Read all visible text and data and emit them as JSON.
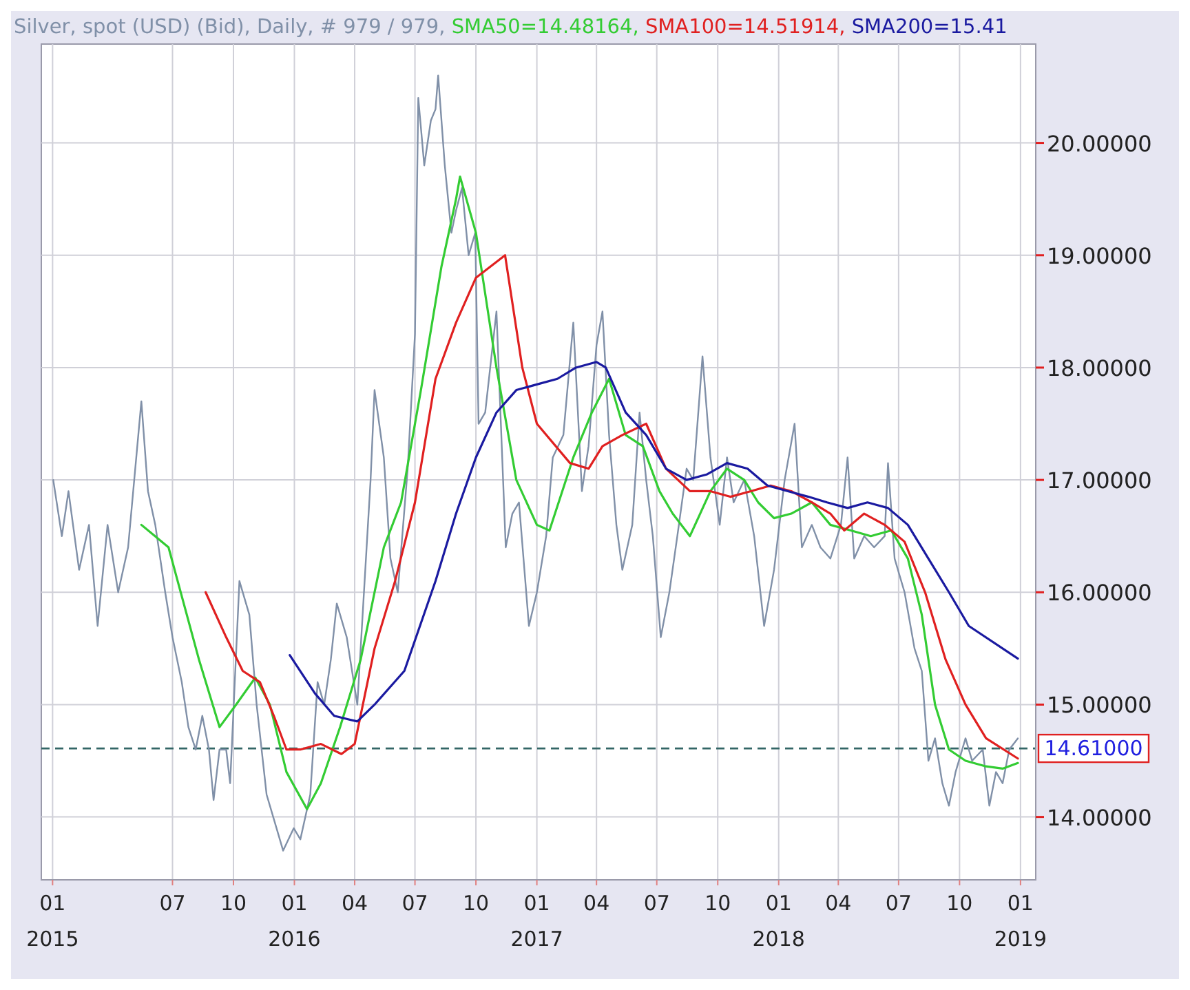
{
  "chart_data": {
    "type": "line",
    "title": "Silver, spot (USD) (Bid), Daily, # 979 / 979, ",
    "legend": "top",
    "grid": true,
    "marker": "none",
    "line_style": "solid",
    "xlim": [
      "2014-12-15",
      "2019-01-24"
    ],
    "xticks": [
      {
        "value": "2015-01-01",
        "label": "01\n2015"
      },
      {
        "value": "2015-07-01",
        "label": "07"
      },
      {
        "value": "2015-10-01",
        "label": "10"
      },
      {
        "value": "2016-01-01",
        "label": "01\n2016"
      },
      {
        "value": "2016-04-01",
        "label": "04"
      },
      {
        "value": "2016-07-01",
        "label": "07"
      },
      {
        "value": "2016-10-01",
        "label": "10"
      },
      {
        "value": "2017-01-01",
        "label": "01\n2017"
      },
      {
        "value": "2017-04-01",
        "label": "04"
      },
      {
        "value": "2017-07-01",
        "label": "07"
      },
      {
        "value": "2017-10-01",
        "label": "10"
      },
      {
        "value": "2018-01-01",
        "label": "01\n2018"
      },
      {
        "value": "2018-04-01",
        "label": "04"
      },
      {
        "value": "2018-07-01",
        "label": "07"
      },
      {
        "value": "2018-10-01",
        "label": "10"
      },
      {
        "value": "2019-01-01",
        "label": "01\n2019"
      }
    ],
    "ylim": [
      13.44,
      20.88
    ],
    "yticks": [
      {
        "value": 14,
        "label": "14.00000"
      },
      {
        "value": 15,
        "label": "15.00000"
      },
      {
        "value": 16,
        "label": "16.00000"
      },
      {
        "value": 17,
        "label": "17.00000"
      },
      {
        "value": 18,
        "label": "18.00000"
      },
      {
        "value": 19,
        "label": "19.00000"
      },
      {
        "value": 20,
        "label": "20.00000"
      }
    ],
    "ref_lines": [
      {
        "axis": "y",
        "value": 14.61,
        "label": "14.61000",
        "color": "#336666",
        "line_style": "dashed"
      }
    ],
    "series": [
      {
        "color": "#8090a8",
        "x": [
          "2015-01-02",
          "2015-01-15",
          "2015-01-25",
          "2015-02-10",
          "2015-02-25",
          "2015-03-10",
          "2015-03-25",
          "2015-04-10",
          "2015-04-25",
          "2015-05-15",
          "2015-05-25",
          "2015-06-05",
          "2015-06-20",
          "2015-07-01",
          "2015-07-15",
          "2015-07-25",
          "2015-08-05",
          "2015-08-15",
          "2015-08-25",
          "2015-09-01",
          "2015-09-10",
          "2015-09-20",
          "2015-09-26",
          "2015-10-10",
          "2015-10-25",
          "2015-11-05",
          "2015-11-20",
          "2015-12-05",
          "2015-12-15",
          "2015-12-31",
          "2016-01-10",
          "2016-01-25",
          "2016-02-05",
          "2016-02-15",
          "2016-02-25",
          "2016-03-05",
          "2016-03-20",
          "2016-04-05",
          "2016-04-15",
          "2016-04-25",
          "2016-05-01",
          "2016-05-15",
          "2016-05-25",
          "2016-06-05",
          "2016-06-20",
          "2016-07-01",
          "2016-07-06",
          "2016-07-15",
          "2016-07-25",
          "2016-08-01",
          "2016-08-05",
          "2016-08-15",
          "2016-08-25",
          "2016-09-01",
          "2016-09-10",
          "2016-09-20",
          "2016-09-30",
          "2016-10-05",
          "2016-10-15",
          "2016-11-01",
          "2016-11-15",
          "2016-11-25",
          "2016-12-05",
          "2016-12-20",
          "2017-01-01",
          "2017-01-15",
          "2017-01-25",
          "2017-02-10",
          "2017-02-25",
          "2017-03-10",
          "2017-03-20",
          "2017-04-01",
          "2017-04-10",
          "2017-04-20",
          "2017-05-01",
          "2017-05-10",
          "2017-05-25",
          "2017-06-05",
          "2017-06-15",
          "2017-06-25",
          "2017-07-07",
          "2017-07-20",
          "2017-08-01",
          "2017-08-15",
          "2017-08-25",
          "2017-09-08",
          "2017-09-20",
          "2017-10-04",
          "2017-10-15",
          "2017-10-25",
          "2017-11-10",
          "2017-11-25",
          "2017-12-10",
          "2017-12-25",
          "2018-01-10",
          "2018-01-25",
          "2018-02-05",
          "2018-02-20",
          "2018-03-05",
          "2018-03-20",
          "2018-04-05",
          "2018-04-15",
          "2018-04-25",
          "2018-05-10",
          "2018-05-25",
          "2018-06-10",
          "2018-06-15",
          "2018-06-25",
          "2018-07-10",
          "2018-07-25",
          "2018-08-05",
          "2018-08-15",
          "2018-08-25",
          "2018-09-05",
          "2018-09-15",
          "2018-09-25",
          "2018-10-10",
          "2018-10-20",
          "2018-11-05",
          "2018-11-15",
          "2018-11-25",
          "2018-12-05",
          "2018-12-15",
          "2018-12-28"
        ],
        "values": [
          17.0,
          16.5,
          16.9,
          16.2,
          16.6,
          15.7,
          16.6,
          16.0,
          16.4,
          17.7,
          16.9,
          16.6,
          16.0,
          15.6,
          15.2,
          14.8,
          14.6,
          14.9,
          14.6,
          14.15,
          14.6,
          14.6,
          14.3,
          16.1,
          15.8,
          15.0,
          14.2,
          13.9,
          13.7,
          13.9,
          13.8,
          14.2,
          15.2,
          15.0,
          15.4,
          15.9,
          15.6,
          15.0,
          16.0,
          17.0,
          17.8,
          17.2,
          16.3,
          16.0,
          17.1,
          18.3,
          20.4,
          19.8,
          20.2,
          20.3,
          20.6,
          19.8,
          19.2,
          19.4,
          19.6,
          19.0,
          19.2,
          17.5,
          17.6,
          18.5,
          16.4,
          16.7,
          16.8,
          15.7,
          16.0,
          16.5,
          17.2,
          17.4,
          18.4,
          16.9,
          17.3,
          18.2,
          18.5,
          17.4,
          16.6,
          16.2,
          16.6,
          17.6,
          17.0,
          16.5,
          15.6,
          16.0,
          16.5,
          17.1,
          17.0,
          18.1,
          17.2,
          16.6,
          17.2,
          16.8,
          17.0,
          16.5,
          15.7,
          16.2,
          17.0,
          17.5,
          16.4,
          16.6,
          16.4,
          16.3,
          16.6,
          17.2,
          16.3,
          16.5,
          16.4,
          16.5,
          17.15,
          16.3,
          16.0,
          15.5,
          15.3,
          14.5,
          14.7,
          14.3,
          14.1,
          14.4,
          14.7,
          14.5,
          14.6,
          14.1,
          14.4,
          14.3,
          14.6,
          14.7
        ]
      },
      {
        "name": "SMA50=14.48164,",
        "color": "#33cc33",
        "x": [
          "2015-05-15",
          "2015-06-25",
          "2015-08-10",
          "2015-09-10",
          "2015-10-05",
          "2015-11-03",
          "2015-11-25",
          "2015-12-20",
          "2016-01-20",
          "2016-02-10",
          "2016-03-10",
          "2016-04-10",
          "2016-05-15",
          "2016-06-10",
          "2016-07-10",
          "2016-08-10",
          "2016-09-01",
          "2016-09-07",
          "2016-10-01",
          "2016-11-01",
          "2016-12-01",
          "2017-01-01",
          "2017-01-20",
          "2017-02-25",
          "2017-03-25",
          "2017-04-20",
          "2017-05-15",
          "2017-06-10",
          "2017-07-05",
          "2017-07-25",
          "2017-08-20",
          "2017-09-20",
          "2017-10-15",
          "2017-11-10",
          "2017-12-01",
          "2017-12-25",
          "2018-01-20",
          "2018-02-20",
          "2018-03-20",
          "2018-04-20",
          "2018-05-20",
          "2018-06-20",
          "2018-07-15",
          "2018-08-05",
          "2018-08-25",
          "2018-09-15",
          "2018-10-10",
          "2018-11-10",
          "2018-12-05",
          "2018-12-28"
        ],
        "values": [
          16.6,
          16.4,
          15.4,
          14.8,
          15.0,
          15.24,
          15.0,
          14.4,
          14.07,
          14.3,
          14.8,
          15.4,
          16.4,
          16.8,
          17.8,
          18.9,
          19.5,
          19.7,
          19.2,
          18.0,
          17.0,
          16.6,
          16.55,
          17.2,
          17.6,
          17.9,
          17.4,
          17.3,
          16.9,
          16.7,
          16.5,
          16.9,
          17.1,
          17.0,
          16.8,
          16.66,
          16.7,
          16.8,
          16.6,
          16.55,
          16.5,
          16.55,
          16.3,
          15.8,
          15.0,
          14.6,
          14.5,
          14.45,
          14.43,
          14.48
        ]
      },
      {
        "name": "SMA100=14.51914,",
        "color": "#e02020",
        "x": [
          "2015-08-20",
          "2015-09-20",
          "2015-10-15",
          "2015-11-10",
          "2015-12-01",
          "2015-12-20",
          "2016-01-10",
          "2016-02-10",
          "2016-03-12",
          "2016-04-01",
          "2016-05-01",
          "2016-06-01",
          "2016-07-01",
          "2016-08-01",
          "2016-09-01",
          "2016-10-01",
          "2016-11-14",
          "2016-12-10",
          "2017-01-01",
          "2017-02-20",
          "2017-03-20",
          "2017-04-10",
          "2017-05-10",
          "2017-06-15",
          "2017-07-15",
          "2017-08-20",
          "2017-09-20",
          "2017-10-20",
          "2017-11-20",
          "2017-12-20",
          "2018-01-20",
          "2018-02-20",
          "2018-03-20",
          "2018-04-10",
          "2018-05-10",
          "2018-06-10",
          "2018-07-10",
          "2018-08-10",
          "2018-09-10",
          "2018-10-10",
          "2018-11-10",
          "2018-12-28"
        ],
        "values": [
          16.0,
          15.6,
          15.3,
          15.2,
          14.9,
          14.6,
          14.6,
          14.65,
          14.56,
          14.65,
          15.5,
          16.1,
          16.8,
          17.9,
          18.4,
          18.8,
          19.0,
          18.0,
          17.5,
          17.15,
          17.1,
          17.3,
          17.4,
          17.5,
          17.1,
          16.9,
          16.9,
          16.85,
          16.9,
          16.95,
          16.9,
          16.8,
          16.7,
          16.55,
          16.7,
          16.6,
          16.45,
          16.0,
          15.4,
          15.0,
          14.7,
          14.52
        ]
      },
      {
        "name": "SMA200=15.41",
        "color": "#1a1aa0",
        "x": [
          "2015-12-25",
          "2016-02-01",
          "2016-03-01",
          "2016-04-05",
          "2016-05-01",
          "2016-06-15",
          "2016-08-01",
          "2016-09-01",
          "2016-10-01",
          "2016-11-01",
          "2016-12-01",
          "2017-01-01",
          "2017-02-01",
          "2017-03-01",
          "2017-04-01",
          "2017-04-15",
          "2017-05-15",
          "2017-06-15",
          "2017-07-15",
          "2017-08-15",
          "2017-09-15",
          "2017-10-15",
          "2017-11-15",
          "2017-12-15",
          "2018-01-15",
          "2018-02-15",
          "2018-03-15",
          "2018-04-15",
          "2018-05-15",
          "2018-06-15",
          "2018-07-15",
          "2018-08-15",
          "2018-09-15",
          "2018-10-15",
          "2018-12-28"
        ],
        "values": [
          15.44,
          15.1,
          14.9,
          14.85,
          15.0,
          15.3,
          16.1,
          16.7,
          17.2,
          17.6,
          17.8,
          17.85,
          17.9,
          18.0,
          18.05,
          18.0,
          17.6,
          17.4,
          17.1,
          17.0,
          17.05,
          17.15,
          17.1,
          16.95,
          16.9,
          16.85,
          16.8,
          16.75,
          16.8,
          16.75,
          16.6,
          16.3,
          16.0,
          15.7,
          15.41
        ]
      }
    ]
  }
}
